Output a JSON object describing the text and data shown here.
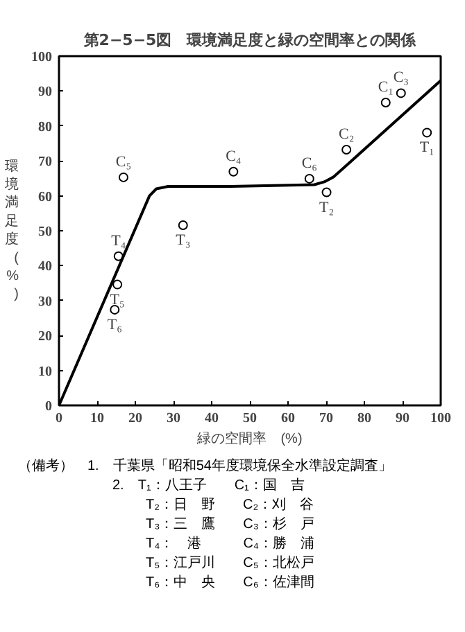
{
  "chart_data": {
    "type": "scatter",
    "title": "第2−5−5図　環境満足度と緑の空間率との関係",
    "xlabel": "緑の空間率　(%)",
    "ylabel": "環境満足度(%)",
    "xlim": [
      0,
      100
    ],
    "ylim": [
      0,
      100
    ],
    "xticks": [
      0,
      10,
      20,
      30,
      40,
      50,
      60,
      70,
      80,
      90,
      100
    ],
    "yticks": [
      0,
      10,
      20,
      30,
      40,
      50,
      60,
      70,
      80,
      90,
      100
    ],
    "grid": false,
    "series": [
      {
        "marker": "circle",
        "color": "#000000",
        "x": [
          85.6,
          75.3,
          89.6,
          45.7,
          16.9,
          65.6,
          96.4,
          70.1,
          32.5,
          15.6,
          15.3,
          14.6
        ],
        "values": [
          86.7,
          73.2,
          89.4,
          66.9,
          65.3,
          64.9,
          78.1,
          61,
          51.6,
          42.7,
          34.6,
          27.4
        ]
      },
      {
        "type": "line",
        "color": "#000000",
        "x": [
          0,
          23.7,
          25.5,
          28.6,
          45,
          66.9,
          69.5,
          71.9,
          75.6,
          100
        ],
        "values": [
          0,
          60,
          62,
          62.7,
          62.7,
          63.2,
          64,
          65.4,
          69,
          93
        ]
      }
    ],
    "annotations": [
      {
        "text": "C₁",
        "x": 85.6,
        "y": 86.7
      },
      {
        "text": "C₂",
        "x": 75.3,
        "y": 73.2
      },
      {
        "text": "C₃",
        "x": 89.6,
        "y": 89.4
      },
      {
        "text": "C₄",
        "x": 45.7,
        "y": 66.9
      },
      {
        "text": "C₅",
        "x": 16.9,
        "y": 65.3
      },
      {
        "text": "C₆",
        "x": 65.6,
        "y": 64.9
      },
      {
        "text": "T₁",
        "x": 96.4,
        "y": 78.1
      },
      {
        "text": "T₂",
        "x": 70.1,
        "y": 61
      },
      {
        "text": "T₃",
        "x": 32.5,
        "y": 51.6
      },
      {
        "text": "T₄",
        "x": 15.6,
        "y": 42.7
      },
      {
        "text": "T₅",
        "x": 15.3,
        "y": 34.6
      },
      {
        "text": "T₆",
        "x": 14.6,
        "y": 27.4
      },
      "（備考）　1.　千葉県「昭和54年度環境保全水準設定調査」",
      "2.　T₁：八王子　　C₁：国　吉",
      "T₂：日　野　　C₂：刈　谷",
      "T₃：三　鷹　　C₃：杉　戸",
      "T₄：　港　　　C₄：勝　浦",
      "T₅：江戸川　　C₅：北松戸",
      "T₆：中　央　　C₆：佐津間"
    ]
  }
}
